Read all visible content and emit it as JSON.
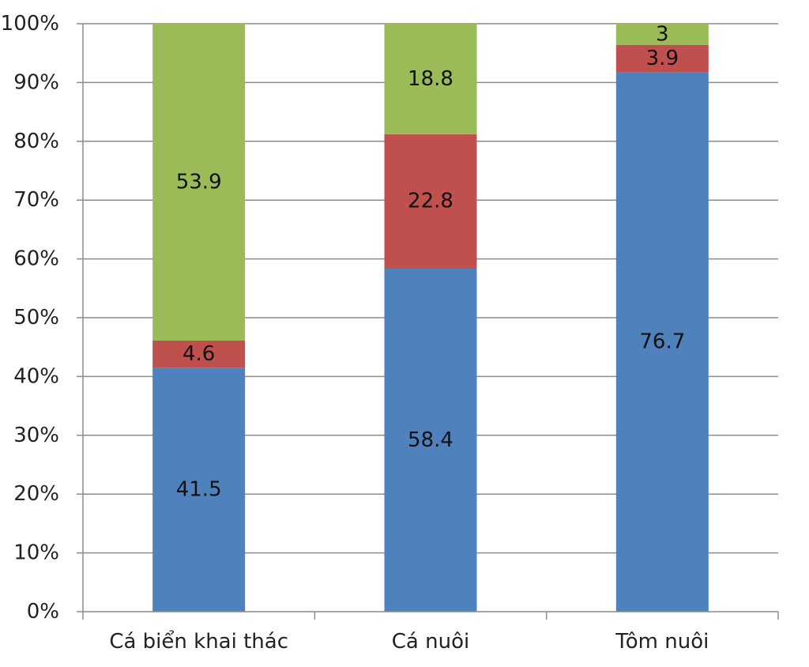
{
  "chart_data": {
    "type": "bar",
    "stacked": true,
    "percent_stacked": true,
    "categories": [
      "Cá biển khai thác",
      "Cá nuôi",
      "Tôm nuôi"
    ],
    "series": [
      {
        "values": [
          41.5,
          58.4,
          76.7
        ],
        "color": "#4f81bd"
      },
      {
        "values": [
          4.6,
          22.8,
          3.9
        ],
        "color": "#c0504d"
      },
      {
        "values": [
          53.9,
          18.8,
          3
        ],
        "color": "#9bbb59"
      }
    ],
    "y_ticks": [
      "0%",
      "10%",
      "20%",
      "30%",
      "40%",
      "50%",
      "60%",
      "70%",
      "80%",
      "90%",
      "100%"
    ],
    "ylim": [
      0,
      100
    ],
    "grid": true,
    "legend": "none",
    "title": "",
    "xlabel": "",
    "ylabel": ""
  }
}
